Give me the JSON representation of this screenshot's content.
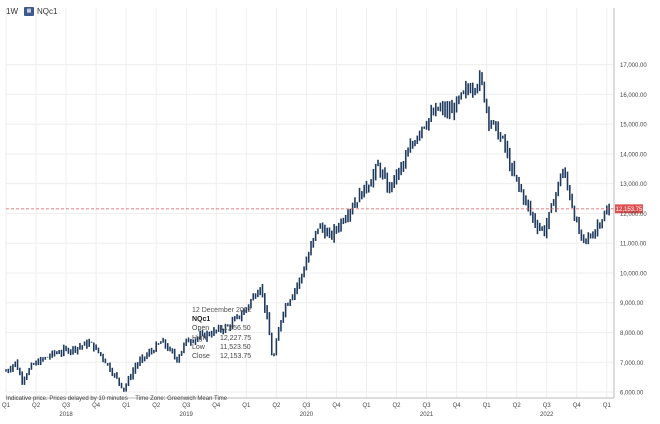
{
  "header": {
    "interval": "1W",
    "symbol": "NQc1",
    "badge_icon": "instrument-icon"
  },
  "tooltip": {
    "date": "12 December 2022",
    "symbol": "NQc1",
    "open_label": "Open",
    "open": "11,556.50",
    "high_label": "High",
    "high": "12,227.75",
    "low_label": "Low",
    "low": "11,523.50",
    "close_label": "Close",
    "close": "12,153.75"
  },
  "footer": {
    "disclaimer": "Indicative price. Prices delayed by 10 minutes",
    "timezone": "Time Zone: Greenwich Mean Time"
  },
  "chart_data": {
    "type": "ohlc",
    "ylim": [
      5800,
      18900
    ],
    "yticks": [
      6000,
      7000,
      8000,
      9000,
      10000,
      11000,
      12000,
      13000,
      14000,
      15000,
      16000,
      17000
    ],
    "ytick_labels": [
      "6,000.00",
      "7,000.00",
      "8,000.00",
      "9,000.00",
      "10,000.00",
      "11,000.00",
      "12,000.00",
      "13,000.00",
      "14,000.00",
      "15,000.00",
      "16,000.00",
      "17,000.00"
    ],
    "xlim": [
      2018.0,
      2023.06
    ],
    "quarter_ticks": [
      {
        "t": 2018.0,
        "label": "Q1"
      },
      {
        "t": 2018.25,
        "label": "Q2"
      },
      {
        "t": 2018.5,
        "label": "Q3"
      },
      {
        "t": 2018.75,
        "label": "Q4"
      },
      {
        "t": 2019.0,
        "label": "Q1"
      },
      {
        "t": 2019.25,
        "label": "Q2"
      },
      {
        "t": 2019.5,
        "label": "Q3"
      },
      {
        "t": 2019.75,
        "label": "Q4"
      },
      {
        "t": 2020.0,
        "label": "Q1"
      },
      {
        "t": 2020.25,
        "label": "Q2"
      },
      {
        "t": 2020.5,
        "label": "Q3"
      },
      {
        "t": 2020.75,
        "label": "Q4"
      },
      {
        "t": 2021.0,
        "label": "Q1"
      },
      {
        "t": 2021.25,
        "label": "Q2"
      },
      {
        "t": 2021.5,
        "label": "Q3"
      },
      {
        "t": 2021.75,
        "label": "Q4"
      },
      {
        "t": 2022.0,
        "label": "Q1"
      },
      {
        "t": 2022.25,
        "label": "Q2"
      },
      {
        "t": 2022.5,
        "label": "Q3"
      },
      {
        "t": 2022.75,
        "label": "Q4"
      },
      {
        "t": 2023.0,
        "label": "Q1"
      }
    ],
    "year_labels": [
      {
        "t": 2018.5,
        "label": "2018"
      },
      {
        "t": 2019.5,
        "label": "2019"
      },
      {
        "t": 2020.5,
        "label": "2020"
      },
      {
        "t": 2021.5,
        "label": "2021"
      },
      {
        "t": 2022.5,
        "label": "2022"
      }
    ],
    "anchors": [
      [
        2018.0,
        6700
      ],
      [
        2018.08,
        7000
      ],
      [
        2018.13,
        6400
      ],
      [
        2018.22,
        6900
      ],
      [
        2018.4,
        7300
      ],
      [
        2018.55,
        7450
      ],
      [
        2018.7,
        7650
      ],
      [
        2018.8,
        7200
      ],
      [
        2018.88,
        6700
      ],
      [
        2018.98,
        6100
      ],
      [
        2019.08,
        6900
      ],
      [
        2019.3,
        7700
      ],
      [
        2019.42,
        7100
      ],
      [
        2019.5,
        7700
      ],
      [
        2019.65,
        7900
      ],
      [
        2019.85,
        8200
      ],
      [
        2019.98,
        8700
      ],
      [
        2020.12,
        9600
      ],
      [
        2020.18,
        8300
      ],
      [
        2020.22,
        7000
      ],
      [
        2020.3,
        8700
      ],
      [
        2020.45,
        9800
      ],
      [
        2020.6,
        11600
      ],
      [
        2020.7,
        11200
      ],
      [
        2020.85,
        12100
      ],
      [
        2021.0,
        12900
      ],
      [
        2021.1,
        13600
      ],
      [
        2021.18,
        12800
      ],
      [
        2021.3,
        13600
      ],
      [
        2021.45,
        14900
      ],
      [
        2021.6,
        15500
      ],
      [
        2021.7,
        15400
      ],
      [
        2021.85,
        16200
      ],
      [
        2021.95,
        16500
      ],
      [
        2022.02,
        15200
      ],
      [
        2022.15,
        14300
      ],
      [
        2022.2,
        13500
      ],
      [
        2022.28,
        12800
      ],
      [
        2022.4,
        11700
      ],
      [
        2022.48,
        11400
      ],
      [
        2022.58,
        12700
      ],
      [
        2022.63,
        13500
      ],
      [
        2022.7,
        12500
      ],
      [
        2022.75,
        11600
      ],
      [
        2022.8,
        11000
      ],
      [
        2022.88,
        11300
      ],
      [
        2022.95,
        11800
      ],
      [
        2023.03,
        12153.75
      ]
    ],
    "last_price": 12153.75,
    "last_price_label": "12,153.75",
    "price_line_color": "#e05050",
    "bar_color": "#1f3a5f"
  }
}
